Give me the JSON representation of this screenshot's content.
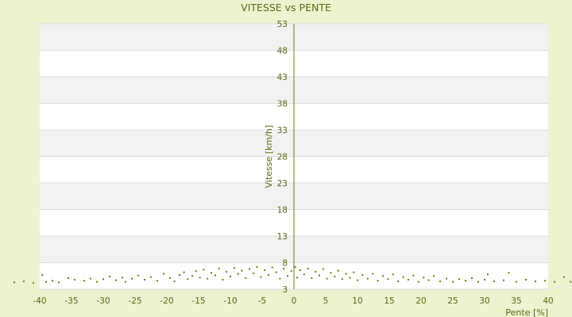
{
  "chart_data": {
    "type": "scatter",
    "title": "VITESSE vs PENTE",
    "xlabel": "Pente [%]",
    "ylabel": "Vitesse [km/h]",
    "xlim": [
      -40,
      40
    ],
    "ylim": [
      3,
      53
    ],
    "xticks": [
      -40,
      -35,
      -30,
      -25,
      -20,
      -15,
      -10,
      -5,
      0,
      5,
      10,
      15,
      20,
      25,
      30,
      35,
      40
    ],
    "yticks": [
      3,
      8,
      13,
      18,
      23,
      28,
      33,
      38,
      43,
      48,
      53
    ],
    "grid": "horizontal alternating bands",
    "legend": "none",
    "colors": {
      "background": "#edf3cf",
      "band_white": "#ffffff",
      "band_grey": "#f2f2f2",
      "grid": "#dddddd",
      "points": "#6b7a14",
      "text": "#5a6612",
      "axis": "#6b7a14"
    },
    "series": [
      {
        "points": [
          [
            -44,
            4.3
          ],
          [
            -42.5,
            4.5
          ],
          [
            -41,
            4.2
          ],
          [
            -39.6,
            5.7
          ],
          [
            -39,
            4.4
          ],
          [
            -38,
            4.6
          ],
          [
            -37,
            4.3
          ],
          [
            -35.5,
            5.1
          ],
          [
            -34.5,
            4.8
          ],
          [
            -33,
            4.6
          ],
          [
            -32,
            5.0
          ],
          [
            -31,
            4.4
          ],
          [
            -30,
            4.9
          ],
          [
            -29,
            5.4
          ],
          [
            -28,
            4.7
          ],
          [
            -27,
            5.2
          ],
          [
            -26.5,
            4.4
          ],
          [
            -25.5,
            5.0
          ],
          [
            -24.5,
            5.6
          ],
          [
            -23.5,
            4.8
          ],
          [
            -22.5,
            5.3
          ],
          [
            -21.5,
            4.6
          ],
          [
            -20.5,
            5.9
          ],
          [
            -19.5,
            5.1
          ],
          [
            -18.8,
            4.5
          ],
          [
            -18,
            5.7
          ],
          [
            -17.3,
            6.2
          ],
          [
            -16.7,
            4.9
          ],
          [
            -16,
            5.5
          ],
          [
            -15.4,
            6.4
          ],
          [
            -14.8,
            5.2
          ],
          [
            -14.2,
            6.7
          ],
          [
            -13.6,
            5.0
          ],
          [
            -13,
            6.1
          ],
          [
            -12.4,
            5.6
          ],
          [
            -11.8,
            6.9
          ],
          [
            -11.2,
            4.8
          ],
          [
            -10.6,
            6.3
          ],
          [
            -10,
            5.4
          ],
          [
            -9.4,
            7.0
          ],
          [
            -8.8,
            5.9
          ],
          [
            -8.2,
            6.5
          ],
          [
            -7.6,
            5.1
          ],
          [
            -7,
            6.8
          ],
          [
            -6.4,
            6.0
          ],
          [
            -5.8,
            7.2
          ],
          [
            -5.2,
            5.3
          ],
          [
            -4.6,
            6.6
          ],
          [
            -4,
            5.7
          ],
          [
            -3.4,
            7.1
          ],
          [
            -2.8,
            6.2
          ],
          [
            -2.2,
            5.0
          ],
          [
            -1.6,
            6.9
          ],
          [
            -1,
            5.5
          ],
          [
            -0.4,
            6.4
          ],
          [
            0.2,
            7.2
          ],
          [
            0.5,
            5.2
          ],
          [
            1,
            6.6
          ],
          [
            1.6,
            5.8
          ],
          [
            2.2,
            6.9
          ],
          [
            2.8,
            5.1
          ],
          [
            3.4,
            6.3
          ],
          [
            4,
            5.6
          ],
          [
            4.6,
            6.8
          ],
          [
            5.2,
            5.0
          ],
          [
            5.8,
            6.1
          ],
          [
            6.4,
            5.4
          ],
          [
            7,
            6.5
          ],
          [
            7.6,
            4.9
          ],
          [
            8.2,
            5.9
          ],
          [
            8.8,
            5.2
          ],
          [
            9.4,
            6.2
          ],
          [
            10,
            4.7
          ],
          [
            10.8,
            5.7
          ],
          [
            11.6,
            5.0
          ],
          [
            12.4,
            5.9
          ],
          [
            13.2,
            4.6
          ],
          [
            14,
            5.5
          ],
          [
            14.8,
            4.9
          ],
          [
            15.6,
            5.8
          ],
          [
            16.4,
            4.5
          ],
          [
            17.2,
            5.3
          ],
          [
            18,
            4.8
          ],
          [
            18.8,
            5.6
          ],
          [
            19.6,
            4.4
          ],
          [
            20.4,
            5.2
          ],
          [
            21.2,
            4.7
          ],
          [
            22,
            5.5
          ],
          [
            23,
            4.5
          ],
          [
            24,
            5.0
          ],
          [
            25,
            4.4
          ],
          [
            26,
            4.9
          ],
          [
            27,
            4.6
          ],
          [
            28,
            5.1
          ],
          [
            29,
            4.4
          ],
          [
            30,
            4.8
          ],
          [
            30.5,
            5.8
          ],
          [
            31.5,
            4.5
          ],
          [
            33,
            4.7
          ],
          [
            33.8,
            6.1
          ],
          [
            35,
            4.4
          ],
          [
            36.5,
            4.8
          ],
          [
            38,
            4.5
          ],
          [
            39.5,
            4.6
          ],
          [
            41,
            4.4
          ],
          [
            42.5,
            5.3
          ],
          [
            43.5,
            4.4
          ]
        ]
      }
    ]
  }
}
